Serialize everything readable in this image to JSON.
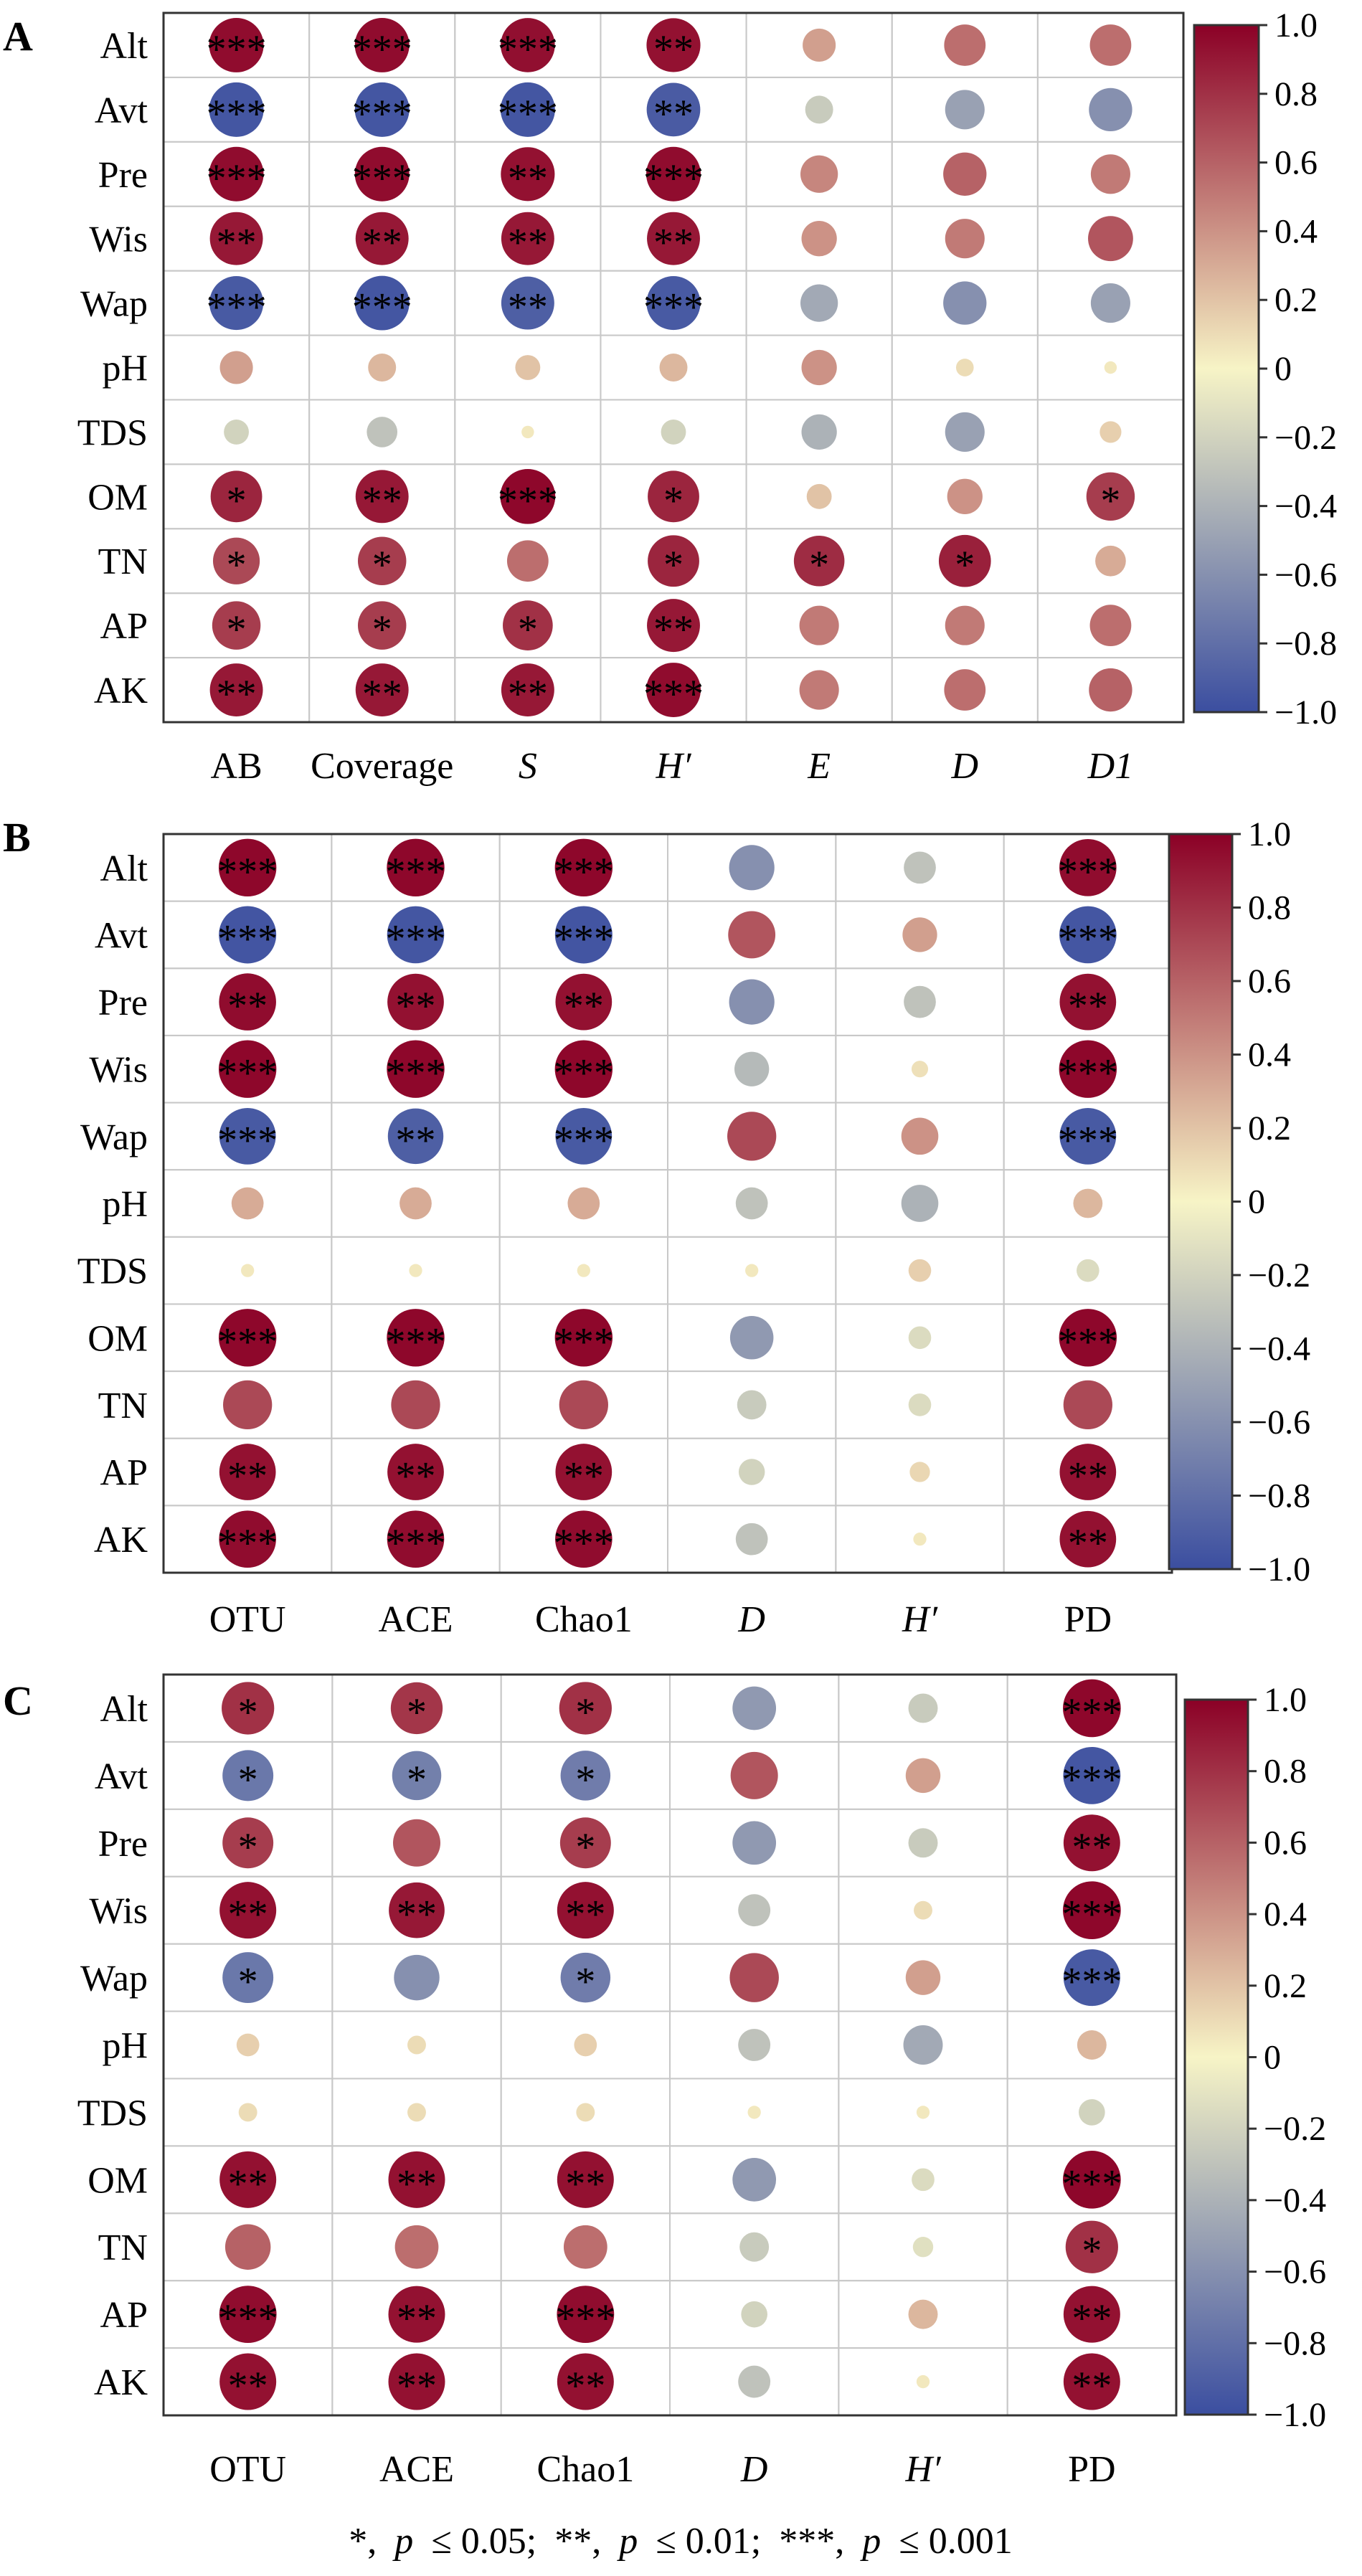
{
  "footnote": {
    "s1": "*,",
    "p1": "p",
    "t1": "≤ 0.05;",
    "s2": "**,",
    "p2": "p",
    "t2": "≤ 0.01;",
    "s3": "***,",
    "p3": "p",
    "t3": "≤ 0.001"
  },
  "chart_data": [
    {
      "type": "heatmap",
      "panel": "A",
      "rows": [
        "Alt",
        "Avt",
        "Pre",
        "Wis",
        "Wap",
        "pH",
        "TDS",
        "OM",
        "TN",
        "AP",
        "AK"
      ],
      "columns": [
        {
          "label": "AB",
          "italic": false
        },
        {
          "label": "Coverage",
          "italic": false
        },
        {
          "label": "S",
          "italic": true
        },
        {
          "label": "H′",
          "italic": true
        },
        {
          "label": "E",
          "italic": true
        },
        {
          "label": "D",
          "italic": true
        },
        {
          "label": "D1",
          "italic": true
        }
      ],
      "values": [
        [
          0.95,
          0.95,
          0.94,
          0.93,
          0.35,
          0.55,
          0.55
        ],
        [
          -0.95,
          -0.95,
          -0.95,
          -0.92,
          -0.25,
          -0.5,
          -0.6
        ],
        [
          0.95,
          0.95,
          0.93,
          0.95,
          0.45,
          0.6,
          0.5
        ],
        [
          0.9,
          0.9,
          0.9,
          0.9,
          0.4,
          0.5,
          0.65
        ],
        [
          -0.93,
          -0.95,
          -0.9,
          -0.93,
          -0.45,
          -0.6,
          -0.5
        ],
        [
          0.35,
          0.25,
          0.2,
          0.25,
          0.4,
          0.1,
          0.05
        ],
        [
          -0.2,
          -0.3,
          0.05,
          -0.2,
          -0.4,
          -0.5,
          0.15
        ],
        [
          0.85,
          0.9,
          0.97,
          0.85,
          0.2,
          0.4,
          0.75
        ],
        [
          0.7,
          0.75,
          0.55,
          0.85,
          0.82,
          0.87,
          0.3
        ],
        [
          0.75,
          0.75,
          0.8,
          0.9,
          0.5,
          0.5,
          0.55
        ],
        [
          0.9,
          0.9,
          0.9,
          0.95,
          0.5,
          0.55,
          0.6
        ]
      ],
      "significance": [
        [
          "***",
          "***",
          "***",
          "**",
          "",
          "",
          ""
        ],
        [
          "***",
          "***",
          "***",
          "**",
          "",
          "",
          ""
        ],
        [
          "***",
          "***",
          "**",
          "***",
          "",
          "",
          ""
        ],
        [
          "**",
          "**",
          "**",
          "**",
          "",
          "",
          ""
        ],
        [
          "***",
          "***",
          "**",
          "***",
          "",
          "",
          ""
        ],
        [
          "",
          "",
          "",
          "",
          "",
          "",
          ""
        ],
        [
          "",
          "",
          "",
          "",
          "",
          "",
          ""
        ],
        [
          "*",
          "**",
          "***",
          "*",
          "",
          "",
          "*"
        ],
        [
          "*",
          "*",
          "",
          "*",
          "*",
          "*",
          ""
        ],
        [
          "*",
          "*",
          "*",
          "**",
          "",
          "",
          ""
        ],
        [
          "**",
          "**",
          "**",
          "***",
          "",
          "",
          ""
        ]
      ],
      "colorbar": {
        "ticks": [
          "1.0",
          "0.8",
          "0.6",
          "0.4",
          "0.2",
          "0",
          "−0.2",
          "−0.4",
          "−0.6",
          "−0.8",
          "−1.0"
        ],
        "range": [
          -1,
          1
        ]
      },
      "colorscale": {
        "negative": "#3b4ea0",
        "zero": "#f7f4c6",
        "positive": "#8b0026"
      },
      "grid": true
    },
    {
      "type": "heatmap",
      "panel": "B",
      "rows": [
        "Alt",
        "Avt",
        "Pre",
        "Wis",
        "Wap",
        "pH",
        "TDS",
        "OM",
        "TN",
        "AP",
        "AK"
      ],
      "columns": [
        {
          "label": "OTU",
          "italic": false
        },
        {
          "label": "ACE",
          "italic": false
        },
        {
          "label": "Chao1",
          "italic": false
        },
        {
          "label": "D",
          "italic": true
        },
        {
          "label": "H′",
          "italic": true
        },
        {
          "label": "PD",
          "italic": false
        }
      ],
      "values": [
        [
          0.97,
          0.97,
          0.97,
          -0.6,
          -0.3,
          0.95
        ],
        [
          -0.96,
          -0.95,
          -0.96,
          0.65,
          0.35,
          -0.95
        ],
        [
          0.95,
          0.93,
          0.93,
          -0.6,
          -0.3,
          0.93
        ],
        [
          0.97,
          0.97,
          0.97,
          -0.35,
          0.08,
          0.97
        ],
        [
          -0.93,
          -0.9,
          -0.93,
          0.7,
          0.4,
          -0.93
        ],
        [
          0.3,
          0.3,
          0.3,
          -0.3,
          -0.4,
          0.25
        ],
        [
          0.05,
          0.05,
          0.05,
          0.05,
          0.15,
          -0.15
        ],
        [
          0.97,
          0.97,
          0.97,
          -0.55,
          -0.15,
          0.97
        ],
        [
          0.7,
          0.7,
          0.7,
          -0.25,
          -0.15,
          0.7
        ],
        [
          0.93,
          0.93,
          0.93,
          -0.2,
          0.12,
          0.93
        ],
        [
          0.95,
          0.95,
          0.95,
          -0.3,
          0.05,
          0.93
        ]
      ],
      "significance": [
        [
          "***",
          "***",
          "***",
          "",
          "",
          "***"
        ],
        [
          "***",
          "***",
          "***",
          "",
          "",
          "***"
        ],
        [
          "**",
          "**",
          "**",
          "",
          "",
          "**"
        ],
        [
          "***",
          "***",
          "***",
          "",
          "",
          "***"
        ],
        [
          "***",
          "**",
          "***",
          "",
          "",
          "***"
        ],
        [
          "",
          "",
          "",
          "",
          "",
          ""
        ],
        [
          "",
          "",
          "",
          "",
          "",
          ""
        ],
        [
          "***",
          "***",
          "***",
          "",
          "",
          "***"
        ],
        [
          "",
          "",
          "",
          "",
          "",
          ""
        ],
        [
          "**",
          "**",
          "**",
          "",
          "",
          "**"
        ],
        [
          "***",
          "***",
          "***",
          "",
          "",
          "**"
        ]
      ],
      "colorbar": {
        "ticks": [
          "1.0",
          "0.8",
          "0.6",
          "0.4",
          "0.2",
          "0",
          "−0.2",
          "−0.4",
          "−0.6",
          "−0.8",
          "−1.0"
        ],
        "range": [
          -1,
          1
        ]
      },
      "colorscale": {
        "negative": "#3b4ea0",
        "zero": "#f7f4c6",
        "positive": "#8b0026"
      },
      "grid": true
    },
    {
      "type": "heatmap",
      "panel": "C",
      "rows": [
        "Alt",
        "Avt",
        "Pre",
        "Wis",
        "Wap",
        "pH",
        "TDS",
        "OM",
        "TN",
        "AP",
        "AK"
      ],
      "columns": [
        {
          "label": "OTU",
          "italic": false
        },
        {
          "label": "ACE",
          "italic": false
        },
        {
          "label": "Chao1",
          "italic": false
        },
        {
          "label": "D",
          "italic": true
        },
        {
          "label": "H′",
          "italic": true
        },
        {
          "label": "PD",
          "italic": false
        }
      ],
      "values": [
        [
          0.8,
          0.78,
          0.8,
          -0.55,
          -0.25,
          0.97
        ],
        [
          -0.75,
          -0.7,
          -0.72,
          0.65,
          0.35,
          -0.95
        ],
        [
          0.75,
          0.65,
          0.75,
          -0.55,
          -0.25,
          0.93
        ],
        [
          0.93,
          0.9,
          0.93,
          -0.3,
          0.1,
          0.97
        ],
        [
          -0.75,
          -0.6,
          -0.72,
          0.7,
          0.35,
          -0.93
        ],
        [
          0.15,
          0.1,
          0.15,
          -0.3,
          -0.45,
          0.25
        ],
        [
          0.1,
          0.1,
          0.1,
          0.05,
          0.05,
          -0.2
        ],
        [
          0.93,
          0.93,
          0.93,
          -0.55,
          -0.15,
          0.97
        ],
        [
          0.6,
          0.55,
          0.55,
          -0.25,
          -0.12,
          0.8
        ],
        [
          0.95,
          0.93,
          0.95,
          -0.2,
          0.25,
          0.93
        ],
        [
          0.93,
          0.93,
          0.93,
          -0.3,
          0.05,
          0.93
        ]
      ],
      "significance": [
        [
          "*",
          "*",
          "*",
          "",
          "",
          "***"
        ],
        [
          "*",
          "*",
          "*",
          "",
          "",
          "***"
        ],
        [
          "*",
          "",
          "*",
          "",
          "",
          "**"
        ],
        [
          "**",
          "**",
          "**",
          "",
          "",
          "***"
        ],
        [
          "*",
          "",
          "*",
          "",
          "",
          "***"
        ],
        [
          "",
          "",
          "",
          "",
          "",
          ""
        ],
        [
          "",
          "",
          "",
          "",
          "",
          ""
        ],
        [
          "**",
          "**",
          "**",
          "",
          "",
          "***"
        ],
        [
          "",
          "",
          "",
          "",
          "",
          "*"
        ],
        [
          "***",
          "**",
          "***",
          "",
          "",
          "**"
        ],
        [
          "**",
          "**",
          "**",
          "",
          "",
          "**"
        ]
      ],
      "colorbar": {
        "ticks": [
          "1.0",
          "0.8",
          "0.6",
          "0.4",
          "0.2",
          "0",
          "−0.2",
          "−0.4",
          "−0.6",
          "−0.8",
          "−1.0"
        ],
        "range": [
          -1,
          1
        ]
      },
      "colorscale": {
        "negative": "#3b4ea0",
        "zero": "#f7f4c6",
        "positive": "#8b0026"
      },
      "grid": true
    }
  ]
}
